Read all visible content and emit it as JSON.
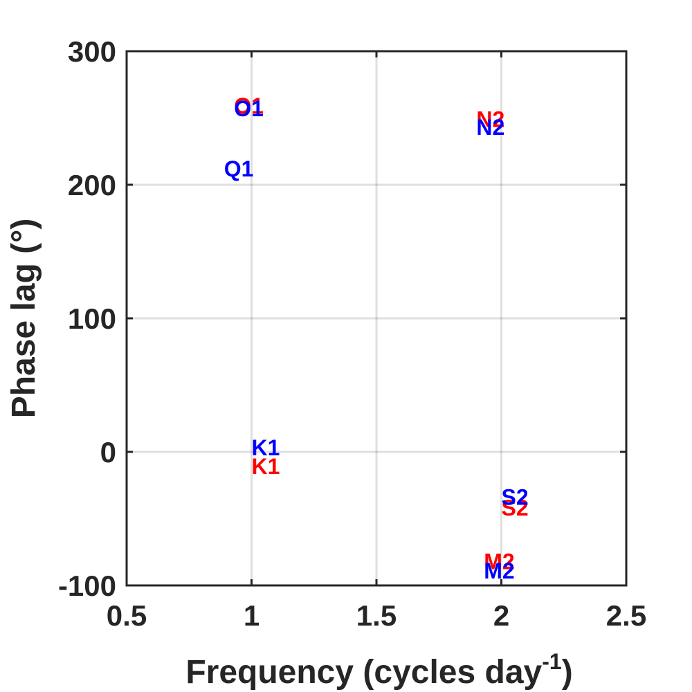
{
  "chart_data": {
    "type": "scatter",
    "xlabel": "Frequency (cycles day",
    "xlabel_superscript": "-1",
    "xlabel_suffix": ")",
    "ylabel": "Phase lag (°)",
    "xlim": [
      0.5,
      2.5
    ],
    "ylim": [
      -100,
      300
    ],
    "x_ticks": [
      0.5,
      1,
      1.5,
      2,
      2.5
    ],
    "x_tick_labels": [
      "0.5",
      "1",
      "1.5",
      "2",
      "2.5"
    ],
    "y_ticks": [
      -100,
      0,
      100,
      200,
      300
    ],
    "y_tick_labels": [
      "-100",
      "0",
      "100",
      "200",
      "300"
    ],
    "grid": true,
    "series": [
      {
        "color": "#ff0000",
        "points": [
          {
            "label": "O1",
            "x": 0.93,
            "y": 259
          },
          {
            "label": "K1",
            "x": 1.0,
            "y": -11
          },
          {
            "label": "N2",
            "x": 1.9,
            "y": 249
          },
          {
            "label": "M2",
            "x": 1.93,
            "y": -82
          },
          {
            "label": "S2",
            "x": 2.0,
            "y": -42
          }
        ]
      },
      {
        "color": "#0000ff",
        "points": [
          {
            "label": "O1",
            "x": 0.93,
            "y": 257
          },
          {
            "label": "Q1",
            "x": 0.89,
            "y": 212
          },
          {
            "label": "K1",
            "x": 1.0,
            "y": 3
          },
          {
            "label": "N2",
            "x": 1.9,
            "y": 243
          },
          {
            "label": "M2",
            "x": 1.93,
            "y": -89
          },
          {
            "label": "S2",
            "x": 2.0,
            "y": -34
          }
        ]
      }
    ]
  }
}
